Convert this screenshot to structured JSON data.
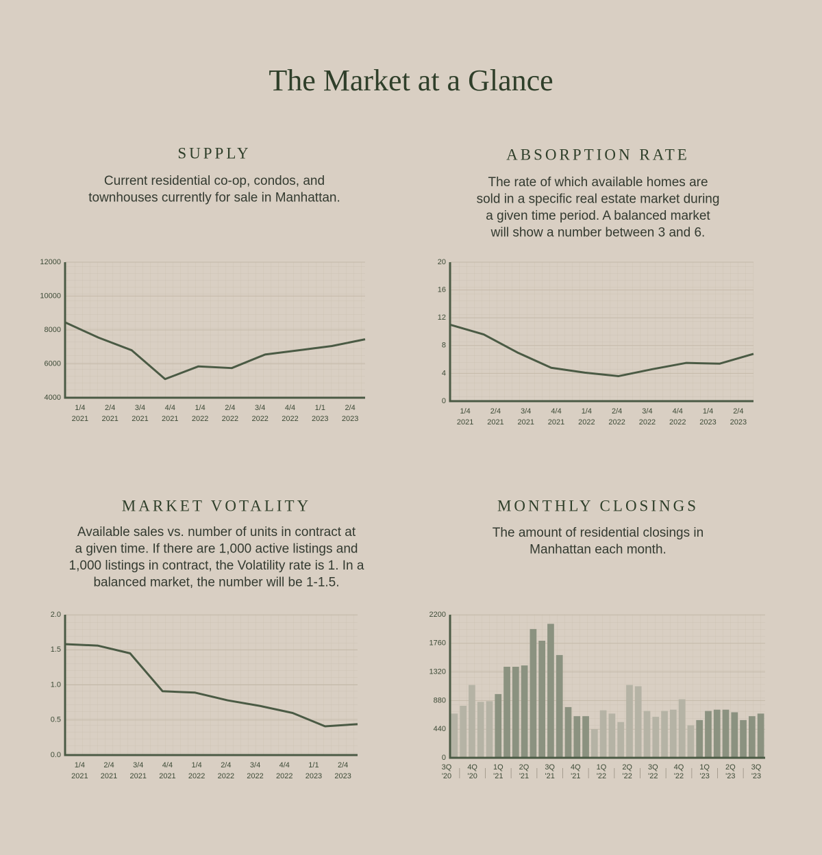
{
  "title": "The Market at a Glance",
  "chart_data": [
    {
      "type": "line",
      "title": "SUPPLY",
      "description": [
        "Current residential co-op, condos, and",
        "townhouses currently for sale in Manhattan."
      ],
      "categories": [
        [
          "1/4",
          "2021"
        ],
        [
          "2/4",
          "2021"
        ],
        [
          "3/4",
          "2021"
        ],
        [
          "4/4",
          "2021"
        ],
        [
          "1/4",
          "2022"
        ],
        [
          "2/4",
          "2022"
        ],
        [
          "3/4",
          "2022"
        ],
        [
          "4/4",
          "2022"
        ],
        [
          "1/1",
          "2023"
        ],
        [
          "2/4",
          "2023"
        ]
      ],
      "values": [
        8450,
        7550,
        6800,
        5100,
        5850,
        5750,
        6550,
        6800,
        7050,
        7450
      ],
      "ylim": [
        4000,
        12000
      ],
      "yticks": [
        4000,
        6000,
        8000,
        10000,
        12000
      ],
      "color": "#4a5a44",
      "grid": true
    },
    {
      "type": "line",
      "title": "ABSORPTION RATE",
      "description": [
        "The rate of which available homes are",
        "sold in a specific real estate market during",
        "a given time period. A balanced market",
        "will show a number between 3 and 6."
      ],
      "categories": [
        [
          "1/4",
          "2021"
        ],
        [
          "2/4",
          "2021"
        ],
        [
          "3/4",
          "2021"
        ],
        [
          "4/4",
          "2021"
        ],
        [
          "1/4",
          "2022"
        ],
        [
          "2/4",
          "2022"
        ],
        [
          "3/4",
          "2022"
        ],
        [
          "4/4",
          "2022"
        ],
        [
          "1/4",
          "2023"
        ],
        [
          "2/4",
          "2023"
        ]
      ],
      "values": [
        11,
        9.6,
        7,
        4.8,
        4.1,
        3.6,
        4.6,
        5.5,
        5.4,
        6.8
      ],
      "ylim": [
        0,
        20
      ],
      "yticks": [
        0,
        4,
        8,
        12,
        16,
        20
      ],
      "color": "#4a5a44",
      "grid": true
    },
    {
      "type": "line",
      "title": "MARKET VOTALITY",
      "description": [
        "Available sales vs. number of units in contract at",
        "a given time. If there are 1,000 active listings and",
        "1,000 listings in contract, the Volatility rate is 1. In a",
        "balanced market, the number will be 1-1.5."
      ],
      "categories": [
        [
          "1/4",
          "2021"
        ],
        [
          "2/4",
          "2021"
        ],
        [
          "3/4",
          "2021"
        ],
        [
          "4/4",
          "2021"
        ],
        [
          "1/4",
          "2022"
        ],
        [
          "2/4",
          "2022"
        ],
        [
          "3/4",
          "2022"
        ],
        [
          "4/4",
          "2022"
        ],
        [
          "1/1",
          "2023"
        ],
        [
          "2/4",
          "2023"
        ]
      ],
      "values": [
        1.58,
        1.56,
        1.45,
        0.91,
        0.89,
        0.78,
        0.7,
        0.6,
        0.41,
        0.44
      ],
      "ylim": [
        0,
        2
      ],
      "yticks": [
        {
          "value": 0,
          "label": "0.0"
        },
        0.5,
        {
          "value": 1,
          "label": "1.0"
        },
        1.5,
        {
          "value": 2,
          "label": "2.0"
        }
      ],
      "color": "#4a5a44",
      "grid": true
    },
    {
      "type": "bar",
      "title": "MONTHLY CLOSINGS",
      "description": [
        "The amount of residential closings in",
        "Manhattan each month."
      ],
      "categories": [
        null,
        null,
        null,
        null,
        null,
        null,
        null,
        null,
        null,
        null,
        null,
        null,
        null,
        null,
        null,
        null,
        null,
        null,
        null,
        null,
        null,
        null,
        null,
        null,
        null,
        null,
        null,
        null,
        null,
        null,
        null,
        null,
        null,
        null,
        null,
        null
      ],
      "quarter_labels": [
        [
          "3Q",
          "'20"
        ],
        [
          "4Q",
          "'20"
        ],
        [
          "1Q",
          "'21"
        ],
        [
          "2Q",
          "'21"
        ],
        [
          "3Q",
          "'21"
        ],
        [
          "4Q",
          "'21"
        ],
        [
          "1Q",
          "'22"
        ],
        [
          "2Q",
          "'22"
        ],
        [
          "3Q",
          "'22"
        ],
        [
          "4Q",
          "'22"
        ],
        [
          "1Q",
          "'23"
        ],
        [
          "2Q",
          "'23"
        ],
        [
          "3Q",
          "'23"
        ]
      ],
      "values": [
        680,
        800,
        1120,
        860,
        870,
        980,
        1400,
        1400,
        1420,
        1980,
        1800,
        2060,
        1580,
        780,
        640,
        640,
        440,
        730,
        680,
        550,
        1120,
        1100,
        720,
        630,
        720,
        740,
        900,
        500,
        580,
        720,
        740,
        740,
        700,
        580,
        640,
        680
      ],
      "colors": [
        "#b5b3a5",
        "#b5b3a5",
        "#b5b3a5",
        "#b5b3a5",
        "#b5b3a5",
        "#8b9280",
        "#8b9280",
        "#8b9280",
        "#8b9280",
        "#8b9280",
        "#8b9280",
        "#8b9280",
        "#8b9280",
        "#8b9280",
        "#8b9280",
        "#8b9280",
        "#b5b3a5",
        "#b5b3a5",
        "#b5b3a5",
        "#b5b3a5",
        "#b5b3a5",
        "#b5b3a5",
        "#b5b3a5",
        "#b5b3a5",
        "#b5b3a5",
        "#b5b3a5",
        "#b5b3a5",
        "#b5b3a5",
        "#8b9280",
        "#8b9280",
        "#8b9280",
        "#8b9280",
        "#8b9280",
        "#8b9280",
        "#8b9280",
        "#8b9280"
      ],
      "ylim": [
        0,
        2200
      ],
      "yticks": [
        0,
        440,
        880,
        1320,
        1760,
        2200
      ],
      "grid": true
    }
  ]
}
